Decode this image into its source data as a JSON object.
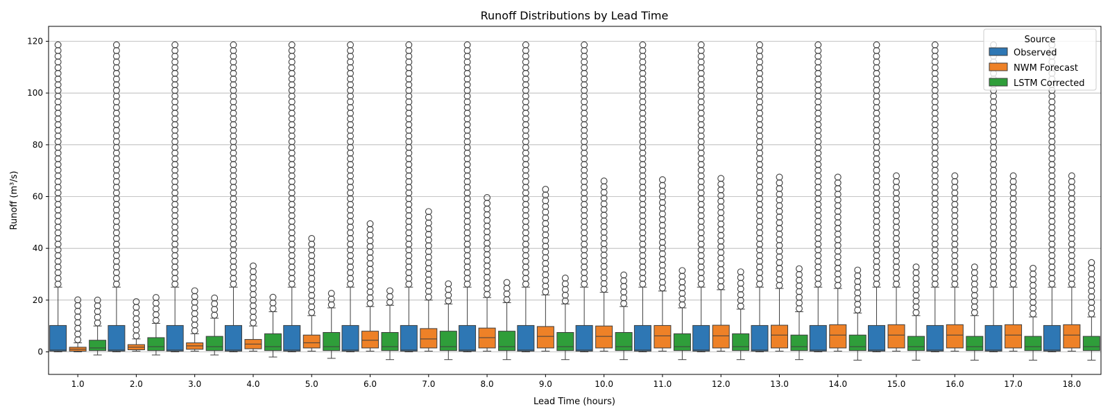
{
  "chart_data": {
    "type": "box",
    "title": "Runoff Distributions by Lead Time",
    "xlabel": "Lead Time (hours)",
    "ylabel": "Runoff (m³/s)",
    "ylim": [
      -10,
      126
    ],
    "yticks": [
      0,
      20,
      40,
      60,
      80,
      100,
      120
    ],
    "grid": "horizontal",
    "legend": {
      "title": "Source",
      "position": "top-right"
    },
    "categories": [
      "1.0",
      "2.0",
      "3.0",
      "4.0",
      "5.0",
      "6.0",
      "7.0",
      "8.0",
      "9.0",
      "10.0",
      "11.0",
      "12.0",
      "13.0",
      "14.0",
      "15.0",
      "16.0",
      "17.0",
      "18.0"
    ],
    "series": [
      {
        "name": "Observed",
        "color": "#2e77b4",
        "boxes": [
          {
            "whisker_low": 0,
            "q1": 0.3,
            "median": 0.7,
            "q3": 10.2,
            "whisker_high": 25,
            "outlier_max": 120
          },
          {
            "whisker_low": 0,
            "q1": 0.3,
            "median": 0.7,
            "q3": 10.2,
            "whisker_high": 25,
            "outlier_max": 120
          },
          {
            "whisker_low": 0,
            "q1": 0.3,
            "median": 0.7,
            "q3": 10.2,
            "whisker_high": 25,
            "outlier_max": 120
          },
          {
            "whisker_low": 0,
            "q1": 0.3,
            "median": 0.7,
            "q3": 10.2,
            "whisker_high": 25,
            "outlier_max": 120
          },
          {
            "whisker_low": 0,
            "q1": 0.3,
            "median": 0.7,
            "q3": 10.2,
            "whisker_high": 25,
            "outlier_max": 120
          },
          {
            "whisker_low": 0,
            "q1": 0.3,
            "median": 0.7,
            "q3": 10.2,
            "whisker_high": 25,
            "outlier_max": 120
          },
          {
            "whisker_low": 0,
            "q1": 0.3,
            "median": 0.7,
            "q3": 10.2,
            "whisker_high": 25,
            "outlier_max": 120
          },
          {
            "whisker_low": 0,
            "q1": 0.3,
            "median": 0.7,
            "q3": 10.2,
            "whisker_high": 25,
            "outlier_max": 120
          },
          {
            "whisker_low": 0,
            "q1": 0.3,
            "median": 0.7,
            "q3": 10.2,
            "whisker_high": 25,
            "outlier_max": 120
          },
          {
            "whisker_low": 0,
            "q1": 0.3,
            "median": 0.7,
            "q3": 10.2,
            "whisker_high": 25,
            "outlier_max": 120
          },
          {
            "whisker_low": 0,
            "q1": 0.3,
            "median": 0.7,
            "q3": 10.2,
            "whisker_high": 25,
            "outlier_max": 120
          },
          {
            "whisker_low": 0,
            "q1": 0.3,
            "median": 0.7,
            "q3": 10.2,
            "whisker_high": 25,
            "outlier_max": 120
          },
          {
            "whisker_low": 0,
            "q1": 0.3,
            "median": 0.7,
            "q3": 10.2,
            "whisker_high": 25,
            "outlier_max": 120
          },
          {
            "whisker_low": 0,
            "q1": 0.3,
            "median": 0.7,
            "q3": 10.2,
            "whisker_high": 25,
            "outlier_max": 120
          },
          {
            "whisker_low": 0,
            "q1": 0.3,
            "median": 0.7,
            "q3": 10.2,
            "whisker_high": 25,
            "outlier_max": 120
          },
          {
            "whisker_low": 0,
            "q1": 0.3,
            "median": 0.7,
            "q3": 10.2,
            "whisker_high": 25,
            "outlier_max": 120
          },
          {
            "whisker_low": 0,
            "q1": 0.3,
            "median": 0.7,
            "q3": 10.2,
            "whisker_high": 25,
            "outlier_max": 120
          },
          {
            "whisker_low": 0,
            "q1": 0.3,
            "median": 0.7,
            "q3": 10.2,
            "whisker_high": 25,
            "outlier_max": 120
          }
        ]
      },
      {
        "name": "NWM Forecast",
        "color": "#ee8127",
        "boxes": [
          {
            "whisker_low": 0,
            "q1": 0.3,
            "median": 1.0,
            "q3": 1.8,
            "whisker_high": 3.5,
            "outlier_max": 21
          },
          {
            "whisker_low": 0.3,
            "q1": 0.8,
            "median": 1.8,
            "q3": 2.8,
            "whisker_high": 5,
            "outlier_max": 21
          },
          {
            "whisker_low": 0.3,
            "q1": 1.0,
            "median": 2.3,
            "q3": 3.5,
            "whisker_high": 7,
            "outlier_max": 24.5
          },
          {
            "whisker_low": 0.3,
            "q1": 1.2,
            "median": 3.0,
            "q3": 4.8,
            "whisker_high": 10,
            "outlier_max": 34.5
          },
          {
            "whisker_low": 0.3,
            "q1": 1.5,
            "median": 3.5,
            "q3": 6.5,
            "whisker_high": 14,
            "outlier_max": 44
          },
          {
            "whisker_low": 0.3,
            "q1": 1.5,
            "median": 4.5,
            "q3": 8.0,
            "whisker_high": 17.5,
            "outlier_max": 49.5
          },
          {
            "whisker_low": 0.3,
            "q1": 1.5,
            "median": 5.0,
            "q3": 9.0,
            "whisker_high": 20,
            "outlier_max": 55.5
          },
          {
            "whisker_low": 0.3,
            "q1": 1.5,
            "median": 5.5,
            "q3": 9.2,
            "whisker_high": 21,
            "outlier_max": 60.5
          },
          {
            "whisker_low": 0.3,
            "q1": 1.5,
            "median": 6.0,
            "q3": 9.8,
            "whisker_high": 22,
            "outlier_max": 63.5
          },
          {
            "whisker_low": 0.3,
            "q1": 1.5,
            "median": 6.0,
            "q3": 10.0,
            "whisker_high": 23,
            "outlier_max": 66
          },
          {
            "whisker_low": 0.3,
            "q1": 1.5,
            "median": 6.2,
            "q3": 10.2,
            "whisker_high": 23.5,
            "outlier_max": 67.5
          },
          {
            "whisker_low": 0.3,
            "q1": 1.5,
            "median": 6.2,
            "q3": 10.3,
            "whisker_high": 24,
            "outlier_max": 68.5
          },
          {
            "whisker_low": 0.3,
            "q1": 1.5,
            "median": 6.5,
            "q3": 10.3,
            "whisker_high": 24.5,
            "outlier_max": 69
          },
          {
            "whisker_low": 0.3,
            "q1": 1.5,
            "median": 6.5,
            "q3": 10.5,
            "whisker_high": 24.5,
            "outlier_max": 69
          },
          {
            "whisker_low": 0.3,
            "q1": 1.5,
            "median": 6.5,
            "q3": 10.5,
            "whisker_high": 25,
            "outlier_max": 69.5
          },
          {
            "whisker_low": 0.3,
            "q1": 1.5,
            "median": 6.5,
            "q3": 10.5,
            "whisker_high": 25,
            "outlier_max": 69.5
          },
          {
            "whisker_low": 0.3,
            "q1": 1.5,
            "median": 6.5,
            "q3": 10.5,
            "whisker_high": 25,
            "outlier_max": 69.5
          },
          {
            "whisker_low": 0.3,
            "q1": 1.5,
            "median": 6.5,
            "q3": 10.5,
            "whisker_high": 25,
            "outlier_max": 69.5
          }
        ]
      },
      {
        "name": "LSTM Corrected",
        "color": "#2f9e3a",
        "boxes": [
          {
            "whisker_low": -1.2,
            "q1": 0.5,
            "median": 1.5,
            "q3": 4.5,
            "whisker_high": 10,
            "outlier_max": 21.5
          },
          {
            "whisker_low": -1.2,
            "q1": 0.5,
            "median": 2.0,
            "q3": 5.5,
            "whisker_high": 11,
            "outlier_max": 21.5
          },
          {
            "whisker_low": -1.2,
            "q1": 0.5,
            "median": 2.0,
            "q3": 6.0,
            "whisker_high": 13,
            "outlier_max": 22.5
          },
          {
            "whisker_low": -2.0,
            "q1": 0.5,
            "median": 2.0,
            "q3": 7.0,
            "whisker_high": 15.5,
            "outlier_max": 23
          },
          {
            "whisker_low": -2.5,
            "q1": 0.5,
            "median": 2.0,
            "q3": 7.5,
            "whisker_high": 17,
            "outlier_max": 24
          },
          {
            "whisker_low": -3.0,
            "q1": 0.5,
            "median": 2.0,
            "q3": 7.5,
            "whisker_high": 18,
            "outlier_max": 25
          },
          {
            "whisker_low": -3.0,
            "q1": 0.5,
            "median": 2.0,
            "q3": 8.0,
            "whisker_high": 18.5,
            "outlier_max": 26.5
          },
          {
            "whisker_low": -3.0,
            "q1": 0.5,
            "median": 2.0,
            "q3": 8.0,
            "whisker_high": 19,
            "outlier_max": 28.5
          },
          {
            "whisker_low": -3.0,
            "q1": 0.5,
            "median": 2.0,
            "q3": 7.5,
            "whisker_high": 18.5,
            "outlier_max": 29.5
          },
          {
            "whisker_low": -3.0,
            "q1": 0.5,
            "median": 2.0,
            "q3": 7.5,
            "whisker_high": 17.5,
            "outlier_max": 31
          },
          {
            "whisker_low": -3.0,
            "q1": 0.5,
            "median": 2.0,
            "q3": 7.0,
            "whisker_high": 17,
            "outlier_max": 31.5
          },
          {
            "whisker_low": -3.0,
            "q1": 0.5,
            "median": 2.0,
            "q3": 7.0,
            "whisker_high": 16.5,
            "outlier_max": 32
          },
          {
            "whisker_low": -3.0,
            "q1": 0.5,
            "median": 2.0,
            "q3": 6.5,
            "whisker_high": 15.5,
            "outlier_max": 32.5
          },
          {
            "whisker_low": -3.2,
            "q1": 0.5,
            "median": 2.0,
            "q3": 6.5,
            "whisker_high": 15,
            "outlier_max": 33
          },
          {
            "whisker_low": -3.2,
            "q1": 0.5,
            "median": 2.0,
            "q3": 6.0,
            "whisker_high": 14,
            "outlier_max": 33.5
          },
          {
            "whisker_low": -3.2,
            "q1": 0.5,
            "median": 2.0,
            "q3": 6.0,
            "whisker_high": 14,
            "outlier_max": 33.5
          },
          {
            "whisker_low": -3.2,
            "q1": 0.5,
            "median": 2.0,
            "q3": 6.0,
            "whisker_high": 13.5,
            "outlier_max": 34
          },
          {
            "whisker_low": -3.2,
            "q1": 0.5,
            "median": 2.0,
            "q3": 6.0,
            "whisker_high": 13.5,
            "outlier_max": 34.5
          }
        ]
      }
    ]
  }
}
